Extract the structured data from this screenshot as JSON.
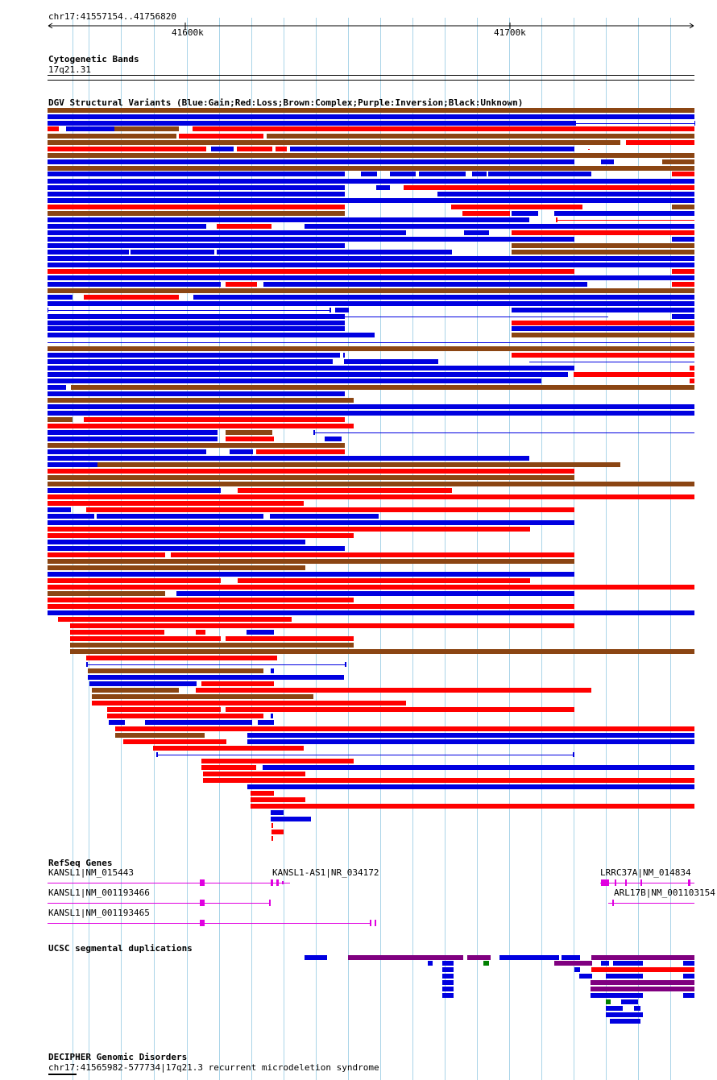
{
  "region": "chr17:41557154..41756820",
  "ruler": {
    "ticks": [
      {
        "label": "41600k",
        "bp": 41600000
      },
      {
        "label": "41700k",
        "bp": 41700000
      }
    ]
  },
  "tracks": {
    "cytoband": {
      "title": "Cytogenetic Bands",
      "band": "17q21.31"
    },
    "dgv": {
      "title": "DGV Structural Variants (Blue:Gain;Red:Loss;Brown:Complex;Purple:Inversion;Black:Unknown)"
    },
    "refseq": {
      "title": "RefSeq Genes",
      "genes": [
        {
          "label": "KANSL1|NM_015443"
        },
        {
          "label": "KANSL1-AS1|NR_034172"
        },
        {
          "label": "LRRC37A|NM_014834"
        },
        {
          "label": "KANSL1|NM_001193466"
        },
        {
          "label": "ARL17B|NM_001103154"
        },
        {
          "label": "KANSL1|NM_001193465"
        }
      ]
    },
    "segdups": {
      "title": "UCSC segmental duplications"
    },
    "decipher": {
      "title": "DECIPHER Genomic Disorders",
      "item": "chr17:41565982-577734|17q21.3 recurrent microdeletion syndrome"
    }
  },
  "colors": {
    "gain": "#0000e0",
    "loss": "#ff0000",
    "complex": "#8b4513",
    "magenta": "#e000e0",
    "purple": "#800080",
    "green": "#008000",
    "grid": "#aad4e8"
  }
}
